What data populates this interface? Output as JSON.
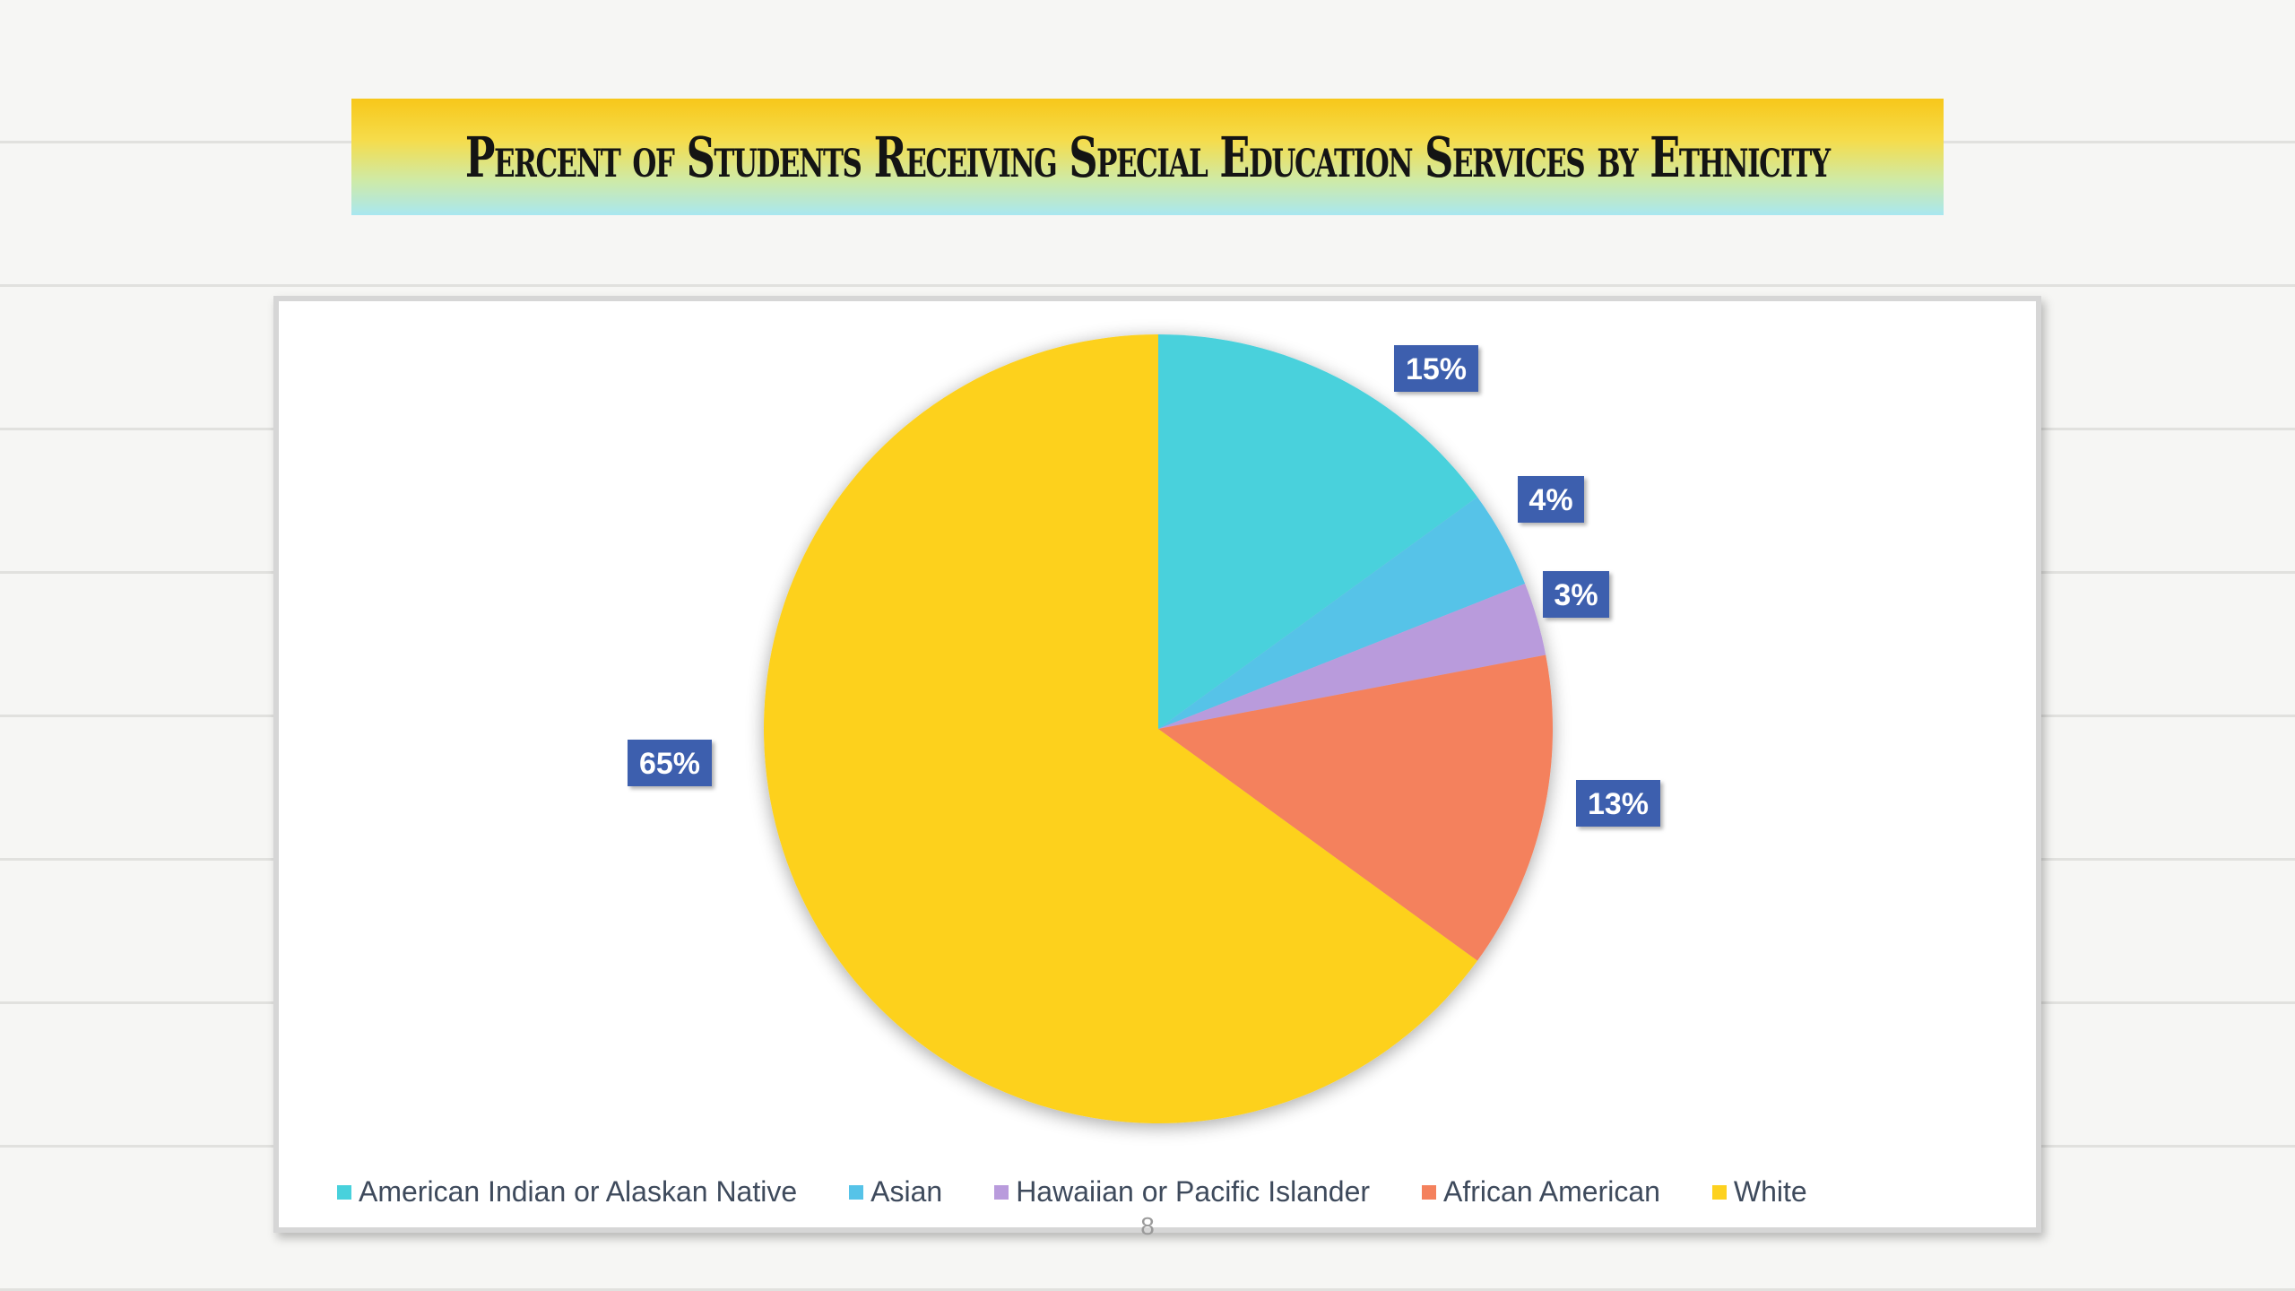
{
  "slide": {
    "title": "Percent of Students Receiving Special Education Services by Ethnicity",
    "page_number": "8"
  },
  "chart_data": {
    "type": "pie",
    "title": "",
    "legend_position": "bottom",
    "categories": [
      "American Indian or Alaskan Native",
      "Asian",
      "Hawaiian or Pacific Islander",
      "African American",
      "White"
    ],
    "values": [
      15,
      4,
      3,
      13,
      65
    ],
    "labels": [
      "15%",
      "4%",
      "3%",
      "13%",
      "65%"
    ],
    "colors": [
      "#48d1dc",
      "#56c3e8",
      "#b99bdc",
      "#f4815d",
      "#fdd11f"
    ],
    "label_box_color": "#3d5fae"
  }
}
